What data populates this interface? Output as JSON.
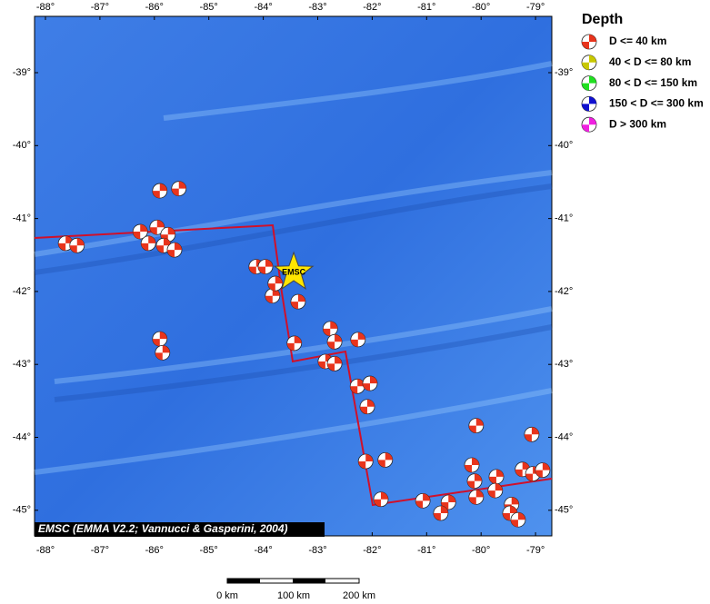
{
  "map": {
    "lon_ticks": [
      {
        "value": -88,
        "label": "-88°"
      },
      {
        "value": -87,
        "label": "-87°"
      },
      {
        "value": -86,
        "label": "-86°"
      },
      {
        "value": -85,
        "label": "-85°"
      },
      {
        "value": -84,
        "label": "-84°"
      },
      {
        "value": -83,
        "label": "-83°"
      },
      {
        "value": -82,
        "label": "-82°"
      },
      {
        "value": -81,
        "label": "-81°"
      },
      {
        "value": -80,
        "label": "-80°"
      },
      {
        "value": -79,
        "label": "-79°"
      }
    ],
    "lat_ticks": [
      {
        "value": -39,
        "label": "-39°"
      },
      {
        "value": -40,
        "label": "-40°"
      },
      {
        "value": -41,
        "label": "-41°"
      },
      {
        "value": -42,
        "label": "-42°"
      },
      {
        "value": -43,
        "label": "-43°"
      },
      {
        "value": -44,
        "label": "-44°"
      },
      {
        "value": -45,
        "label": "-45°"
      }
    ],
    "events": [
      {
        "lon": -87.63,
        "lat": -41.34
      },
      {
        "lon": -87.42,
        "lat": -41.37
      },
      {
        "lon": -85.9,
        "lat": -40.62
      },
      {
        "lon": -85.55,
        "lat": -40.59
      },
      {
        "lon": -86.26,
        "lat": -41.18
      },
      {
        "lon": -86.11,
        "lat": -41.34
      },
      {
        "lon": -85.95,
        "lat": -41.12
      },
      {
        "lon": -85.75,
        "lat": -41.22
      },
      {
        "lon": -85.83,
        "lat": -41.37
      },
      {
        "lon": -85.63,
        "lat": -41.43
      },
      {
        "lon": -84.13,
        "lat": -41.66
      },
      {
        "lon": -83.96,
        "lat": -41.66
      },
      {
        "lon": -83.83,
        "lat": -42.06
      },
      {
        "lon": -83.78,
        "lat": -41.89
      },
      {
        "lon": -83.36,
        "lat": -42.14
      },
      {
        "lon": -82.77,
        "lat": -42.51
      },
      {
        "lon": -82.69,
        "lat": -42.69
      },
      {
        "lon": -82.26,
        "lat": -42.66
      },
      {
        "lon": -83.43,
        "lat": -42.71
      },
      {
        "lon": -82.86,
        "lat": -42.96
      },
      {
        "lon": -82.69,
        "lat": -42.99
      },
      {
        "lon": -82.27,
        "lat": -43.3
      },
      {
        "lon": -82.04,
        "lat": -43.26
      },
      {
        "lon": -82.09,
        "lat": -43.58
      },
      {
        "lon": -85.9,
        "lat": -42.65
      },
      {
        "lon": -85.85,
        "lat": -42.84
      },
      {
        "lon": -80.09,
        "lat": -43.84
      },
      {
        "lon": -79.07,
        "lat": -43.96
      },
      {
        "lon": -80.17,
        "lat": -44.38
      },
      {
        "lon": -81.76,
        "lat": -44.31
      },
      {
        "lon": -82.12,
        "lat": -44.33
      },
      {
        "lon": -81.84,
        "lat": -44.85
      },
      {
        "lon": -81.07,
        "lat": -44.87
      },
      {
        "lon": -80.6,
        "lat": -44.89
      },
      {
        "lon": -80.74,
        "lat": -45.04
      },
      {
        "lon": -80.12,
        "lat": -44.6
      },
      {
        "lon": -79.72,
        "lat": -44.54
      },
      {
        "lon": -79.74,
        "lat": -44.73
      },
      {
        "lon": -80.09,
        "lat": -44.82
      },
      {
        "lon": -79.24,
        "lat": -44.44
      },
      {
        "lon": -79.05,
        "lat": -44.5
      },
      {
        "lon": -78.87,
        "lat": -44.45
      },
      {
        "lon": -79.44,
        "lat": -44.92
      },
      {
        "lon": -79.47,
        "lat": -45.04
      },
      {
        "lon": -79.32,
        "lat": -45.13
      }
    ],
    "epicenter": {
      "label": "EMSC",
      "lon": -83.44,
      "lat": -41.74
    },
    "credit": "EMSC (EMMA V2.2; Vannucci & Gasperini, 2004)",
    "legend": {
      "title": "Depth",
      "items": [
        {
          "label": "D <= 40 km",
          "color": "#e8341c"
        },
        {
          "label": "40 < D <= 80 km",
          "color": "#c8c800"
        },
        {
          "label": "80 < D <= 150 km",
          "color": "#20e020"
        },
        {
          "label": "150 < D <= 300 km",
          "color": "#1010d0"
        },
        {
          "label": "D > 300 km",
          "color": "#f020e0"
        }
      ]
    },
    "scale_bar": {
      "labels": [
        "0 km",
        "100 km",
        "200 km"
      ]
    }
  }
}
